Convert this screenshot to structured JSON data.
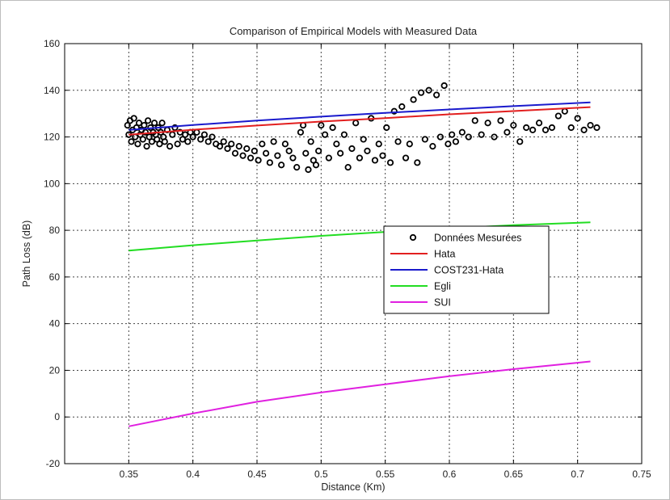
{
  "chart_data": {
    "type": "line",
    "title": "Comparison of Empirical Models with Measured Data",
    "xlabel": "Distance (Km)",
    "ylabel": "Path Loss (dB)",
    "xlim": [
      0.3,
      0.75
    ],
    "ylim": [
      -20,
      160
    ],
    "xticks": [
      0.35,
      0.4,
      0.45,
      0.5,
      0.55,
      0.6,
      0.65,
      0.7,
      0.75
    ],
    "xtick_labels": [
      "0.35",
      "0.4",
      "0.45",
      "0.5",
      "0.55",
      "0.6",
      "0.65",
      "0.7",
      "0.75"
    ],
    "yticks": [
      -20,
      0,
      20,
      40,
      60,
      80,
      100,
      120,
      140,
      160
    ],
    "ytick_labels": [
      "-20",
      "0",
      "20",
      "40",
      "60",
      "80",
      "100",
      "120",
      "140",
      "160"
    ],
    "grid": true,
    "legend_position": "center-right",
    "series": [
      {
        "name": "Données Mesurées",
        "marker": "circle",
        "color": "#000000",
        "points": [
          [
            0.349,
            125
          ],
          [
            0.35,
            121
          ],
          [
            0.351,
            127
          ],
          [
            0.352,
            118
          ],
          [
            0.353,
            123
          ],
          [
            0.354,
            128
          ],
          [
            0.355,
            120
          ],
          [
            0.356,
            124
          ],
          [
            0.357,
            117
          ],
          [
            0.358,
            126
          ],
          [
            0.359,
            121
          ],
          [
            0.36,
            123
          ],
          [
            0.361,
            119
          ],
          [
            0.362,
            125
          ],
          [
            0.363,
            122
          ],
          [
            0.364,
            116
          ],
          [
            0.365,
            127
          ],
          [
            0.366,
            120
          ],
          [
            0.367,
            124
          ],
          [
            0.368,
            118
          ],
          [
            0.369,
            122
          ],
          [
            0.37,
            126
          ],
          [
            0.371,
            121
          ],
          [
            0.372,
            119
          ],
          [
            0.373,
            124
          ],
          [
            0.374,
            117
          ],
          [
            0.375,
            122
          ],
          [
            0.376,
            126
          ],
          [
            0.377,
            120
          ],
          [
            0.378,
            118
          ],
          [
            0.38,
            123
          ],
          [
            0.382,
            116
          ],
          [
            0.384,
            121
          ],
          [
            0.386,
            124
          ],
          [
            0.388,
            117
          ],
          [
            0.39,
            122
          ],
          [
            0.392,
            119
          ],
          [
            0.394,
            121
          ],
          [
            0.396,
            118
          ],
          [
            0.398,
            122
          ],
          [
            0.4,
            120
          ],
          [
            0.403,
            122
          ],
          [
            0.406,
            119
          ],
          [
            0.409,
            121
          ],
          [
            0.412,
            118
          ],
          [
            0.415,
            120
          ],
          [
            0.418,
            117
          ],
          [
            0.421,
            116
          ],
          [
            0.424,
            118
          ],
          [
            0.427,
            115
          ],
          [
            0.43,
            117
          ],
          [
            0.433,
            113
          ],
          [
            0.436,
            116
          ],
          [
            0.439,
            112
          ],
          [
            0.442,
            115
          ],
          [
            0.445,
            111
          ],
          [
            0.448,
            114
          ],
          [
            0.451,
            110
          ],
          [
            0.454,
            117
          ],
          [
            0.457,
            113
          ],
          [
            0.46,
            109
          ],
          [
            0.463,
            118
          ],
          [
            0.466,
            112
          ],
          [
            0.469,
            108
          ],
          [
            0.472,
            117
          ],
          [
            0.475,
            114
          ],
          [
            0.478,
            111
          ],
          [
            0.481,
            107
          ],
          [
            0.484,
            122
          ],
          [
            0.486,
            125
          ],
          [
            0.488,
            113
          ],
          [
            0.49,
            106
          ],
          [
            0.492,
            118
          ],
          [
            0.494,
            110
          ],
          [
            0.496,
            108
          ],
          [
            0.498,
            114
          ],
          [
            0.5,
            125
          ],
          [
            0.503,
            121
          ],
          [
            0.506,
            111
          ],
          [
            0.509,
            124
          ],
          [
            0.512,
            117
          ],
          [
            0.515,
            113
          ],
          [
            0.518,
            121
          ],
          [
            0.521,
            107
          ],
          [
            0.524,
            115
          ],
          [
            0.527,
            126
          ],
          [
            0.53,
            111
          ],
          [
            0.533,
            119
          ],
          [
            0.536,
            114
          ],
          [
            0.539,
            128
          ],
          [
            0.542,
            110
          ],
          [
            0.545,
            117
          ],
          [
            0.548,
            112
          ],
          [
            0.551,
            124
          ],
          [
            0.554,
            109
          ],
          [
            0.557,
            131
          ],
          [
            0.56,
            118
          ],
          [
            0.563,
            133
          ],
          [
            0.566,
            111
          ],
          [
            0.569,
            117
          ],
          [
            0.572,
            136
          ],
          [
            0.575,
            109
          ],
          [
            0.578,
            139
          ],
          [
            0.581,
            119
          ],
          [
            0.584,
            140
          ],
          [
            0.587,
            116
          ],
          [
            0.59,
            138
          ],
          [
            0.593,
            120
          ],
          [
            0.596,
            142
          ],
          [
            0.599,
            117
          ],
          [
            0.602,
            121
          ],
          [
            0.605,
            118
          ],
          [
            0.61,
            122
          ],
          [
            0.615,
            120
          ],
          [
            0.62,
            127
          ],
          [
            0.625,
            121
          ],
          [
            0.63,
            126
          ],
          [
            0.635,
            120
          ],
          [
            0.64,
            127
          ],
          [
            0.645,
            122
          ],
          [
            0.65,
            125
          ],
          [
            0.655,
            118
          ],
          [
            0.66,
            124
          ],
          [
            0.665,
            123
          ],
          [
            0.67,
            126
          ],
          [
            0.675,
            123
          ],
          [
            0.68,
            124
          ],
          [
            0.685,
            129
          ],
          [
            0.69,
            131
          ],
          [
            0.695,
            124
          ],
          [
            0.7,
            128
          ],
          [
            0.705,
            123
          ],
          [
            0.71,
            125
          ],
          [
            0.715,
            124
          ]
        ]
      },
      {
        "name": "Hata",
        "color": "#e21f1f",
        "x": [
          0.35,
          0.4,
          0.45,
          0.5,
          0.55,
          0.6,
          0.65,
          0.71
        ],
        "y": [
          121.0,
          123.1,
          124.9,
          126.6,
          128.1,
          129.7,
          131.1,
          132.8
        ]
      },
      {
        "name": "COST231-Hata",
        "color": "#1a1acc",
        "x": [
          0.35,
          0.4,
          0.45,
          0.5,
          0.55,
          0.6,
          0.65,
          0.71
        ],
        "y": [
          123.0,
          125.1,
          127.0,
          128.7,
          130.3,
          131.8,
          133.2,
          134.8
        ]
      },
      {
        "name": "Egli",
        "color": "#22dd22",
        "x": [
          0.35,
          0.4,
          0.45,
          0.5,
          0.55,
          0.6,
          0.65,
          0.71
        ],
        "y": [
          71.3,
          73.6,
          75.6,
          77.6,
          79.3,
          80.8,
          82.2,
          83.4
        ]
      },
      {
        "name": "SUI",
        "color": "#e020e0",
        "x": [
          0.35,
          0.4,
          0.45,
          0.5,
          0.55,
          0.6,
          0.65,
          0.71
        ],
        "y": [
          -4.0,
          1.5,
          6.5,
          10.5,
          14.0,
          17.5,
          20.5,
          23.8
        ]
      }
    ]
  }
}
